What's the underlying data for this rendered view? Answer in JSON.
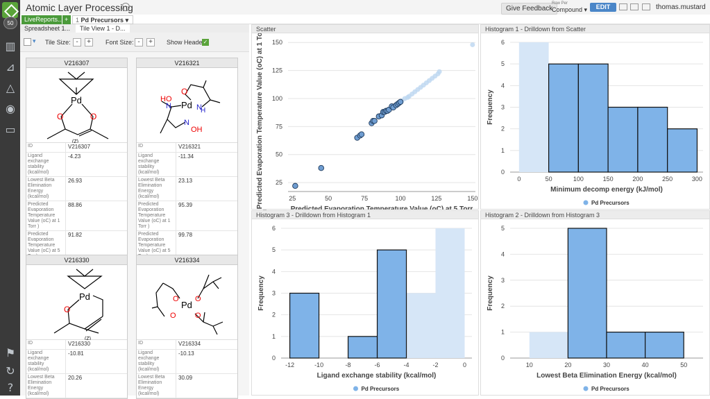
{
  "app": {
    "title": "Atomic Layer Processing",
    "badge": "50",
    "user": "thomas.mustard",
    "feedback": "Give Feedback",
    "row_per_label": "Row Per",
    "row_per_value": "Compound ▾",
    "edit_label": "EDIT",
    "title_menu": "···"
  },
  "tabs": {
    "livereport": "LiveReports...",
    "add": "+",
    "current": "Pd Precursors",
    "count": "1",
    "dropdown": "▾"
  },
  "subtabs": [
    "Spreadsheet 1...",
    "Tile View 1 - D..."
  ],
  "toolbar": {
    "tile_size": "Tile Size:",
    "font_size": "Font Size:",
    "show_header": "Show Header:",
    "minus": "-",
    "plus": "+",
    "check": "✓",
    "filter": "▾"
  },
  "sidebar_icons": [
    "table-icon",
    "chart-icon",
    "alert-icon",
    "eye-icon",
    "comment-icon",
    "flag-icon",
    "refresh-icon",
    "help-icon"
  ],
  "cards": [
    {
      "id": "V216307",
      "rows": [
        [
          "ID",
          "V216307"
        ],
        [
          "Ligand exchange stability (kcal/mol)",
          "-4.23"
        ],
        [
          "Lowest Beta Elimination Energy (kcal/mol)",
          "26.93"
        ],
        [
          "Predicted Evaporation Temperature Value (oC) at 1 Torr )",
          "88.86"
        ],
        [
          "Predicted Evaporation Temperature Value (oC) at 5 Torr)",
          "91.82"
        ]
      ]
    },
    {
      "id": "V216321",
      "rows": [
        [
          "ID",
          "V216321"
        ],
        [
          "Ligand exchange stability (kcal/mol)",
          "-11.34"
        ],
        [
          "Lowest Beta Elimination Energy (kcal/mol)",
          "23.13"
        ],
        [
          "Predicted Evaporation Temperature Value (oC) at 1 Torr )",
          "95.39"
        ],
        [
          "Predicted Evaporation Temperature Value (oC) at 5 Torr)",
          "99.78"
        ]
      ]
    },
    {
      "id": "V216330",
      "rows": [
        [
          "ID",
          "V216330"
        ],
        [
          "Ligand exchange stability (kcal/mol)",
          "-10.81"
        ],
        [
          "Lowest Beta Elimination Energy (kcal/mol)",
          "20.26"
        ]
      ]
    },
    {
      "id": "V216334",
      "rows": [
        [
          "ID",
          "V216334"
        ],
        [
          "Ligand exchange stability (kcal/mol)",
          "-10.13"
        ],
        [
          "Lowest Beta Elimination Energy (kcal/mol)",
          "30.09"
        ]
      ]
    }
  ],
  "chart_data": [
    {
      "panel": "Scatter",
      "type": "scatter",
      "xlabel": "Predicted Evaporation Temperature Value (oC) at 5 Torr",
      "ylabel": "Predicted Evaporation Temperature Value (oC) at 1 Torr )",
      "xlim": [
        22,
        152
      ],
      "ylim": [
        17,
        152
      ],
      "xticks": [
        25,
        50,
        75,
        100,
        125,
        150
      ],
      "yticks": [
        25,
        50,
        75,
        100,
        125,
        150
      ],
      "points_selected": [
        [
          27,
          22
        ],
        [
          45,
          38
        ],
        [
          70,
          65
        ],
        [
          72,
          67
        ],
        [
          73,
          68
        ],
        [
          80,
          78
        ],
        [
          81,
          80
        ],
        [
          82,
          80
        ],
        [
          85,
          84
        ],
        [
          87,
          85
        ],
        [
          88,
          88
        ],
        [
          89,
          88
        ],
        [
          90,
          89
        ],
        [
          91,
          89
        ],
        [
          92,
          90
        ],
        [
          94,
          93
        ],
        [
          95,
          92
        ],
        [
          97,
          94
        ],
        [
          98,
          95
        ],
        [
          99,
          96
        ],
        [
          100,
          97
        ]
      ],
      "points_unselected": [
        [
          101,
          98
        ],
        [
          103,
          100
        ],
        [
          105,
          101
        ],
        [
          106,
          102
        ],
        [
          108,
          104
        ],
        [
          110,
          106
        ],
        [
          112,
          108
        ],
        [
          114,
          110
        ],
        [
          116,
          112
        ],
        [
          118,
          114
        ],
        [
          120,
          116
        ],
        [
          122,
          118
        ],
        [
          124,
          120
        ],
        [
          126,
          122
        ],
        [
          127,
          124
        ],
        [
          150,
          148
        ]
      ]
    },
    {
      "panel": "Histogram 1 - Drilldown from Scatter",
      "type": "bar",
      "xlabel": "Minimum decomp energy (kJ/mol)",
      "ylabel": "Frequency",
      "legend": "Pd Precursors",
      "xlim": [
        -15,
        310
      ],
      "ylim": [
        0,
        6
      ],
      "xticks": [
        0,
        50,
        100,
        150,
        200,
        250,
        300
      ],
      "yticks": [
        0,
        1,
        2,
        3,
        4,
        5,
        6
      ],
      "bins": [
        [
          0,
          50
        ],
        [
          50,
          100
        ],
        [
          100,
          150
        ],
        [
          150,
          200
        ],
        [
          200,
          250
        ],
        [
          250,
          300
        ]
      ],
      "total": [
        6,
        5,
        5,
        3,
        3,
        2
      ],
      "selected": [
        0,
        5,
        5,
        3,
        3,
        2
      ]
    },
    {
      "panel": "Histogram 3 - Drilldown from Histogram 1",
      "type": "bar",
      "xlabel": "Ligand exchange stability (kcal/mol)",
      "ylabel": "Frequency",
      "legend": "Pd Precursors",
      "xlim": [
        -12.6,
        0.5
      ],
      "ylim": [
        0,
        6
      ],
      "xticks": [
        -12,
        -10,
        -8,
        -6,
        -4,
        -2,
        0
      ],
      "yticks": [
        0,
        1,
        2,
        3,
        4,
        5,
        6
      ],
      "bins": [
        [
          -12,
          -10
        ],
        [
          -10,
          -8
        ],
        [
          -8,
          -6
        ],
        [
          -6,
          -4
        ],
        [
          -4,
          -2
        ],
        [
          -2,
          0
        ]
      ],
      "total": [
        3,
        0,
        1,
        5,
        3,
        6
      ],
      "selected": [
        3,
        0,
        1,
        5,
        0,
        0
      ]
    },
    {
      "panel": "Histogram 2 - Drilldown from Histogram 3",
      "type": "bar",
      "xlabel": "Lowest Beta Elimination Energy (kcal/mol)",
      "ylabel": "Frequency",
      "legend": "Pd Precursors",
      "xlim": [
        5,
        55
      ],
      "ylim": [
        0,
        5
      ],
      "xticks": [
        10,
        20,
        30,
        40,
        50
      ],
      "yticks": [
        0,
        1,
        2,
        3,
        4,
        5
      ],
      "bins": [
        [
          10,
          20
        ],
        [
          20,
          30
        ],
        [
          30,
          40
        ],
        [
          40,
          50
        ]
      ],
      "total": [
        1,
        5,
        1,
        1
      ],
      "selected": [
        0,
        5,
        1,
        1
      ]
    }
  ]
}
